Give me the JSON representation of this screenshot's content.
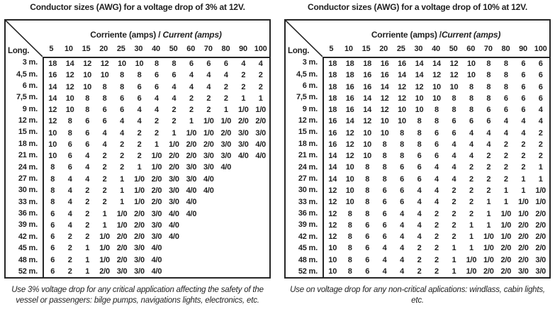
{
  "page": {
    "background": "#ffffff",
    "text_color": "#1f1f1f",
    "border_color": "#262626"
  },
  "tables": [
    {
      "title": "Conductor sizes (AWG) for a voltage drop of 3% at 12V.",
      "corner_label": "Long.",
      "amps_header_plain": "Corriente (amps) / ",
      "amps_header_italic": "Current (amps)",
      "columns": [
        "5",
        "10",
        "15",
        "20",
        "25",
        "30",
        "40",
        "50",
        "60",
        "70",
        "80",
        "90",
        "100"
      ],
      "rows": [
        {
          "label": "3 m.",
          "values": [
            "18",
            "14",
            "12",
            "12",
            "10",
            "10",
            "8",
            "8",
            "6",
            "6",
            "6",
            "4",
            "4"
          ]
        },
        {
          "label": "4,5 m.",
          "values": [
            "16",
            "12",
            "10",
            "10",
            "8",
            "8",
            "6",
            "6",
            "4",
            "4",
            "4",
            "2",
            "2"
          ]
        },
        {
          "label": "6 m.",
          "values": [
            "14",
            "12",
            "10",
            "8",
            "8",
            "6",
            "6",
            "4",
            "4",
            "4",
            "2",
            "2",
            "2"
          ]
        },
        {
          "label": "7,5 m.",
          "values": [
            "14",
            "10",
            "8",
            "8",
            "6",
            "6",
            "4",
            "4",
            "2",
            "2",
            "2",
            "1",
            "1"
          ]
        },
        {
          "label": "9 m.",
          "values": [
            "12",
            "10",
            "8",
            "6",
            "6",
            "4",
            "4",
            "2",
            "2",
            "2",
            "1",
            "1/0",
            "1/0"
          ]
        },
        {
          "label": "12 m.",
          "values": [
            "12",
            "8",
            "6",
            "6",
            "4",
            "4",
            "2",
            "2",
            "1",
            "1/0",
            "1/0",
            "2/0",
            "2/0"
          ]
        },
        {
          "label": "15 m.",
          "values": [
            "10",
            "8",
            "6",
            "4",
            "4",
            "2",
            "2",
            "1",
            "1/0",
            "1/0",
            "2/0",
            "3/0",
            "3/0"
          ]
        },
        {
          "label": "18 m.",
          "values": [
            "10",
            "6",
            "6",
            "4",
            "2",
            "2",
            "1",
            "1/0",
            "2/0",
            "2/0",
            "3/0",
            "3/0",
            "4/0"
          ]
        },
        {
          "label": "21 m.",
          "values": [
            "10",
            "6",
            "4",
            "2",
            "2",
            "2",
            "1/0",
            "2/0",
            "2/0",
            "3/0",
            "3/0",
            "4/0",
            "4/0"
          ]
        },
        {
          "label": "24 m.",
          "values": [
            "8",
            "6",
            "4",
            "2",
            "2",
            "1",
            "1/0",
            "2/0",
            "3/0",
            "3/0",
            "4/0",
            "",
            ""
          ]
        },
        {
          "label": "27 m.",
          "values": [
            "8",
            "4",
            "4",
            "2",
            "1",
            "1/0",
            "2/0",
            "3/0",
            "3/0",
            "4/0",
            "",
            "",
            ""
          ]
        },
        {
          "label": "30 m.",
          "values": [
            "8",
            "4",
            "2",
            "2",
            "1",
            "1/0",
            "2/0",
            "3/0",
            "4/0",
            "4/0",
            "",
            "",
            ""
          ]
        },
        {
          "label": "33 m.",
          "values": [
            "8",
            "4",
            "2",
            "2",
            "1",
            "1/0",
            "2/0",
            "3/0",
            "4/0",
            "",
            "",
            "",
            ""
          ]
        },
        {
          "label": "36 m.",
          "values": [
            "6",
            "4",
            "2",
            "1",
            "1/0",
            "2/0",
            "3/0",
            "4/0",
            "4/0",
            "",
            "",
            "",
            ""
          ]
        },
        {
          "label": "39 m.",
          "values": [
            "6",
            "4",
            "2",
            "1",
            "1/0",
            "2/0",
            "3/0",
            "4/0",
            "",
            "",
            "",
            "",
            ""
          ]
        },
        {
          "label": "42 m.",
          "values": [
            "6",
            "2",
            "2",
            "1/0",
            "2/0",
            "2/0",
            "3/0",
            "4/0",
            "",
            "",
            "",
            "",
            ""
          ]
        },
        {
          "label": "45 m.",
          "values": [
            "6",
            "2",
            "1",
            "1/0",
            "2/0",
            "3/0",
            "4/0",
            "",
            "",
            "",
            "",
            "",
            ""
          ]
        },
        {
          "label": "48 m.",
          "values": [
            "6",
            "2",
            "1",
            "1/0",
            "2/0",
            "3/0",
            "4/0",
            "",
            "",
            "",
            "",
            "",
            ""
          ]
        },
        {
          "label": "52 m.",
          "values": [
            "6",
            "2",
            "1",
            "2/0",
            "3/0",
            "3/0",
            "4/0",
            "",
            "",
            "",
            "",
            "",
            ""
          ]
        }
      ],
      "footnote": "Use 3% voltage drop for any critical application affecting the safety of the vessel or passengers: bilge pumps, navigations lights, electronics, etc."
    },
    {
      "title": "Conductor sizes (AWG) for a voltage drop of 10% at 12V.",
      "corner_label": "Long.",
      "amps_header_plain": "Corriente (amps) /",
      "amps_header_italic": "Current (amps)",
      "columns": [
        "5",
        "10",
        "15",
        "20",
        "25",
        "30",
        "40",
        "50",
        "60",
        "70",
        "80",
        "90",
        "100"
      ],
      "rows": [
        {
          "label": "3 m.",
          "values": [
            "18",
            "18",
            "18",
            "16",
            "16",
            "14",
            "14",
            "12",
            "10",
            "8",
            "8",
            "6",
            "6"
          ]
        },
        {
          "label": "4,5 m.",
          "values": [
            "18",
            "18",
            "16",
            "16",
            "14",
            "14",
            "12",
            "12",
            "10",
            "8",
            "8",
            "6",
            "6"
          ]
        },
        {
          "label": "6 m.",
          "values": [
            "18",
            "16",
            "16",
            "14",
            "12",
            "12",
            "10",
            "10",
            "8",
            "8",
            "8",
            "6",
            "6"
          ]
        },
        {
          "label": "7,5 m.",
          "values": [
            "18",
            "16",
            "14",
            "12",
            "12",
            "10",
            "10",
            "8",
            "8",
            "8",
            "6",
            "6",
            "6"
          ]
        },
        {
          "label": "9 m.",
          "values": [
            "18",
            "16",
            "14",
            "12",
            "10",
            "10",
            "8",
            "8",
            "8",
            "6",
            "6",
            "6",
            "4"
          ]
        },
        {
          "label": "12 m.",
          "values": [
            "16",
            "14",
            "12",
            "10",
            "10",
            "8",
            "8",
            "6",
            "6",
            "6",
            "4",
            "4",
            "4"
          ]
        },
        {
          "label": "15 m.",
          "values": [
            "16",
            "12",
            "10",
            "10",
            "8",
            "8",
            "6",
            "6",
            "4",
            "4",
            "4",
            "4",
            "2"
          ]
        },
        {
          "label": "18 m.",
          "values": [
            "16",
            "12",
            "10",
            "8",
            "8",
            "8",
            "6",
            "4",
            "4",
            "4",
            "2",
            "2",
            "2"
          ]
        },
        {
          "label": "21 m.",
          "values": [
            "14",
            "12",
            "10",
            "8",
            "8",
            "6",
            "6",
            "4",
            "4",
            "2",
            "2",
            "2",
            "2"
          ]
        },
        {
          "label": "24 m.",
          "values": [
            "14",
            "10",
            "8",
            "8",
            "6",
            "6",
            "4",
            "4",
            "2",
            "2",
            "2",
            "2",
            "1"
          ]
        },
        {
          "label": "27 m.",
          "values": [
            "14",
            "10",
            "8",
            "8",
            "6",
            "6",
            "4",
            "4",
            "2",
            "2",
            "2",
            "1",
            "1"
          ]
        },
        {
          "label": "30 m.",
          "values": [
            "12",
            "10",
            "8",
            "6",
            "6",
            "4",
            "4",
            "2",
            "2",
            "2",
            "1",
            "1",
            "1/0"
          ]
        },
        {
          "label": "33 m.",
          "values": [
            "12",
            "10",
            "8",
            "6",
            "6",
            "4",
            "4",
            "2",
            "2",
            "1",
            "1",
            "1/0",
            "1/0"
          ]
        },
        {
          "label": "36 m.",
          "values": [
            "12",
            "8",
            "8",
            "6",
            "4",
            "4",
            "2",
            "2",
            "2",
            "1",
            "1/0",
            "1/0",
            "2/0"
          ]
        },
        {
          "label": "39 m.",
          "values": [
            "12",
            "8",
            "6",
            "6",
            "4",
            "4",
            "2",
            "2",
            "1",
            "1",
            "1/0",
            "2/0",
            "2/0"
          ]
        },
        {
          "label": "42 m.",
          "values": [
            "12",
            "8",
            "6",
            "6",
            "4",
            "4",
            "2",
            "2",
            "1",
            "1/0",
            "1/0",
            "2/0",
            "2/0"
          ]
        },
        {
          "label": "45 m.",
          "values": [
            "10",
            "8",
            "6",
            "4",
            "4",
            "2",
            "2",
            "1",
            "1",
            "1/0",
            "2/0",
            "2/0",
            "2/0"
          ]
        },
        {
          "label": "48 m.",
          "values": [
            "10",
            "8",
            "6",
            "4",
            "4",
            "2",
            "2",
            "1",
            "1/0",
            "1/0",
            "2/0",
            "2/0",
            "3/0"
          ]
        },
        {
          "label": "52 m.",
          "values": [
            "10",
            "8",
            "6",
            "4",
            "4",
            "2",
            "2",
            "1",
            "1/0",
            "2/0",
            "2/0",
            "3/0",
            "3/0"
          ]
        }
      ],
      "footnote": "Use on voltage drop for any non-critical aplications: windlass, cabin lights, etc."
    }
  ]
}
